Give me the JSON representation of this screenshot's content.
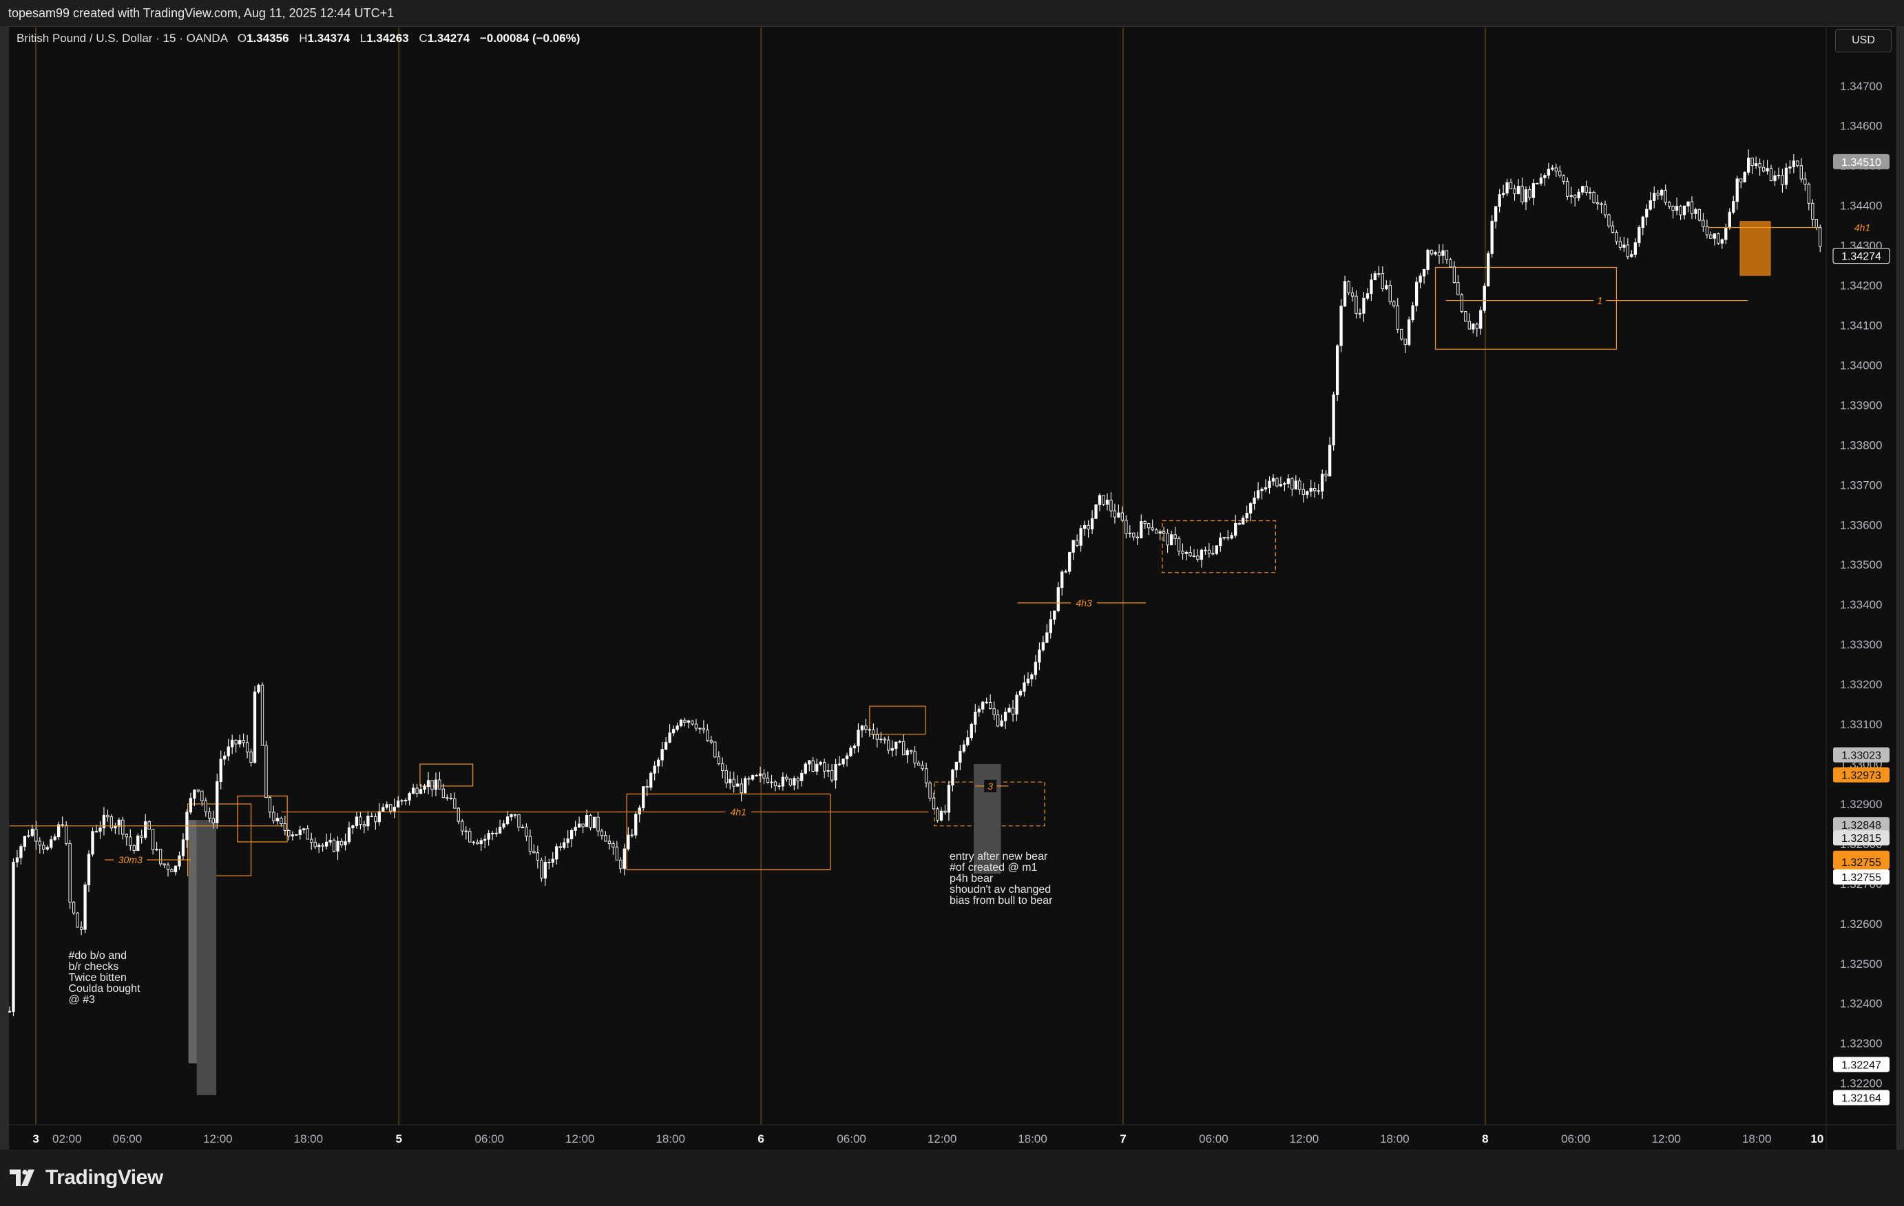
{
  "header": {
    "credit": "topesam99 created with TradingView.com, Aug 11, 2025 12:44 UTC+1"
  },
  "legend": {
    "symbol": "British Pound / U.S. Dollar · 15 · OANDA",
    "o_label": "O",
    "o": "1.34356",
    "h_label": "H",
    "h": "1.34374",
    "l_label": "L",
    "l": "1.34263",
    "c_label": "C",
    "c": "1.34274",
    "change": "−0.00084 (−0.06%)"
  },
  "toolbar": {
    "currency": "USD"
  },
  "footer": {
    "brand": "TradingView"
  },
  "colors": {
    "background": "#0f0f0f",
    "candle": "#ffffff",
    "accent": "#f7931a",
    "session": "#6b4a12",
    "grid_text": "#b2b5be"
  },
  "chart_data": {
    "type": "candlestick",
    "title": "British Pound / U.S. Dollar · 15 · OANDA",
    "ylim": [
      1.3212,
      1.3476
    ],
    "y_ticks": [
      "1.34700",
      "1.34600",
      "1.34500",
      "1.34400",
      "1.34300",
      "1.34200",
      "1.34100",
      "1.34000",
      "1.33900",
      "1.33800",
      "1.33700",
      "1.33600",
      "1.33500",
      "1.33400",
      "1.33300",
      "1.33200",
      "1.33100",
      "1.33000",
      "1.32900",
      "1.32800",
      "1.32700",
      "1.32600",
      "1.32500",
      "1.32400",
      "1.32300",
      "1.32200"
    ],
    "x_ticks": [
      {
        "label": "3",
        "t": 0.34,
        "day": true
      },
      {
        "label": "02:00",
        "t": 2.4
      },
      {
        "label": "06:00",
        "t": 6.4
      },
      {
        "label": "12:00",
        "t": 12.4
      },
      {
        "label": "18:00",
        "t": 18.4
      },
      {
        "label": "5",
        "t": 24.4,
        "day": true
      },
      {
        "label": "06:00",
        "t": 30.4
      },
      {
        "label": "12:00",
        "t": 36.4
      },
      {
        "label": "18:00",
        "t": 42.4
      },
      {
        "label": "6",
        "t": 48.4,
        "day": true
      },
      {
        "label": "06:00",
        "t": 54.4
      },
      {
        "label": "12:00",
        "t": 60.4
      },
      {
        "label": "18:00",
        "t": 66.4
      },
      {
        "label": "7",
        "t": 72.4,
        "day": true
      },
      {
        "label": "06:00",
        "t": 78.4
      },
      {
        "label": "12:00",
        "t": 84.4
      },
      {
        "label": "18:00",
        "t": 90.4
      },
      {
        "label": "8",
        "t": 96.4,
        "day": true
      },
      {
        "label": "06:00",
        "t": 102.4
      },
      {
        "label": "12:00",
        "t": 108.4
      },
      {
        "label": "18:00",
        "t": 114.4
      },
      {
        "label": "10",
        "t": 118.4,
        "day": true
      }
    ],
    "session_lines_t": [
      0.34,
      24.4,
      48.4,
      72.4,
      96.4
    ],
    "t_range": [
      -1.4,
      119.0
    ],
    "price_path": [
      [
        -1.4,
        1.3238
      ],
      [
        -1.2,
        1.3276
      ],
      [
        0,
        1.3284
      ],
      [
        1.2,
        1.3278
      ],
      [
        2.2,
        1.3287
      ],
      [
        2.6,
        1.3265
      ],
      [
        3.3,
        1.3257
      ],
      [
        4,
        1.3283
      ],
      [
        5,
        1.3286
      ],
      [
        6,
        1.3285
      ],
      [
        6.8,
        1.3278
      ],
      [
        7.6,
        1.3285
      ],
      [
        8.6,
        1.3275
      ],
      [
        9.6,
        1.3274
      ],
      [
        10.4,
        1.3288
      ],
      [
        11,
        1.3296
      ],
      [
        12,
        1.3283
      ],
      [
        12.5,
        1.3301
      ],
      [
        13.8,
        1.3306
      ],
      [
        14.6,
        1.3302
      ],
      [
        15.0,
        1.3325
      ],
      [
        15.6,
        1.329
      ],
      [
        16.5,
        1.3284
      ],
      [
        18.5,
        1.3282
      ],
      [
        19.5,
        1.3279
      ],
      [
        20.5,
        1.328
      ],
      [
        21.5,
        1.3285
      ],
      [
        23,
        1.3287
      ],
      [
        25,
        1.3292
      ],
      [
        26,
        1.3296
      ],
      [
        27,
        1.3294
      ],
      [
        28,
        1.3289
      ],
      [
        29,
        1.3282
      ],
      [
        30,
        1.3281
      ],
      [
        31,
        1.3284
      ],
      [
        32,
        1.3287
      ],
      [
        33,
        1.3281
      ],
      [
        33.8,
        1.3272
      ],
      [
        35,
        1.328
      ],
      [
        36,
        1.3285
      ],
      [
        37,
        1.3286
      ],
      [
        38,
        1.3283
      ],
      [
        39,
        1.3274
      ],
      [
        40,
        1.3285
      ],
      [
        40.5,
        1.3292
      ],
      [
        42,
        1.3304
      ],
      [
        43,
        1.3312
      ],
      [
        44,
        1.3311
      ],
      [
        45,
        1.3305
      ],
      [
        46,
        1.3296
      ],
      [
        47,
        1.3294
      ],
      [
        48,
        1.3296
      ],
      [
        49,
        1.3297
      ],
      [
        50,
        1.3295
      ],
      [
        51,
        1.3298
      ],
      [
        52,
        1.33
      ],
      [
        53,
        1.3297
      ],
      [
        54,
        1.3301
      ],
      [
        55,
        1.3309
      ],
      [
        56,
        1.3308
      ],
      [
        57,
        1.3304
      ],
      [
        58,
        1.3304
      ],
      [
        59,
        1.3299
      ],
      [
        60,
        1.3288
      ],
      [
        60.5,
        1.3286
      ],
      [
        61,
        1.3296
      ],
      [
        62,
        1.3307
      ],
      [
        63,
        1.3317
      ],
      [
        64,
        1.3311
      ],
      [
        65,
        1.3313
      ],
      [
        66,
        1.3322
      ],
      [
        67,
        1.3328
      ],
      [
        68,
        1.3342
      ],
      [
        69,
        1.3355
      ],
      [
        70,
        1.3359
      ],
      [
        71,
        1.3367
      ],
      [
        72,
        1.3362
      ],
      [
        73,
        1.3357
      ],
      [
        74,
        1.3361
      ],
      [
        75,
        1.3357
      ],
      [
        76,
        1.3355
      ],
      [
        77,
        1.3351
      ],
      [
        78,
        1.3353
      ],
      [
        79,
        1.3356
      ],
      [
        80,
        1.3361
      ],
      [
        81,
        1.3366
      ],
      [
        82,
        1.337
      ],
      [
        83,
        1.3372
      ],
      [
        84,
        1.3369
      ],
      [
        85,
        1.3368
      ],
      [
        86,
        1.3374
      ],
      [
        87,
        1.3424
      ],
      [
        88,
        1.341
      ],
      [
        89,
        1.3425
      ],
      [
        90,
        1.3418
      ],
      [
        91,
        1.3405
      ],
      [
        92,
        1.3423
      ],
      [
        93,
        1.343
      ],
      [
        94,
        1.3425
      ],
      [
        95,
        1.341
      ],
      [
        96,
        1.341
      ],
      [
        97,
        1.344
      ],
      [
        98,
        1.3446
      ],
      [
        99,
        1.3442
      ],
      [
        100,
        1.3447
      ],
      [
        101,
        1.3451
      ],
      [
        102,
        1.3441
      ],
      [
        103,
        1.3445
      ],
      [
        104,
        1.344
      ],
      [
        105,
        1.3432
      ],
      [
        106,
        1.3426
      ],
      [
        107,
        1.344
      ],
      [
        108,
        1.3444
      ],
      [
        109,
        1.3439
      ],
      [
        110,
        1.344
      ],
      [
        111,
        1.3433
      ],
      [
        112,
        1.343
      ],
      [
        113,
        1.3445
      ],
      [
        114,
        1.3452
      ],
      [
        115,
        1.3448
      ],
      [
        116,
        1.3446
      ],
      [
        117,
        1.3452
      ],
      [
        118,
        1.344
      ],
      [
        118.7,
        1.3427
      ]
    ],
    "zones": [
      {
        "t1": 10.4,
        "t2": 14.6,
        "p1": 1.3272,
        "p2": 1.329,
        "style": "solid"
      },
      {
        "t1": 13.7,
        "t2": 17.0,
        "p1": 1.32805,
        "p2": 1.3292,
        "style": "solid"
      },
      {
        "t1": 25.8,
        "t2": 29.3,
        "p1": 1.32945,
        "p2": 1.33,
        "style": "solid"
      },
      {
        "t1": 39.5,
        "t2": 53.0,
        "p1": 1.32735,
        "p2": 1.32925,
        "style": "solid"
      },
      {
        "t1": 55.6,
        "t2": 59.3,
        "p1": 1.33075,
        "p2": 1.33145,
        "style": "solid"
      },
      {
        "t1": 59.9,
        "t2": 67.2,
        "p1": 1.32845,
        "p2": 1.32955,
        "style": "dashed"
      },
      {
        "t1": 75.0,
        "t2": 82.5,
        "p1": 1.3348,
        "p2": 1.3361,
        "style": "dashed"
      },
      {
        "t1": 93.1,
        "t2": 105.1,
        "p1": 1.3404,
        "p2": 1.34245,
        "style": "solid"
      },
      {
        "t1": 113.3,
        "t2": 115.3,
        "p1": 1.34225,
        "p2": 1.3436,
        "style": "filled"
      }
    ],
    "level_lines": [
      {
        "t1": -1.4,
        "t2": 16.8,
        "p": 1.32845
      },
      {
        "t1": 16.6,
        "t2": 59.5,
        "p": 1.3288
      },
      {
        "t1": 93.8,
        "t2": 113.8,
        "p": 1.34162
      },
      {
        "t1": 111.2,
        "t2": 118.5,
        "p": 1.34345
      }
    ],
    "labels": [
      {
        "text": "30m3",
        "t": 6.6,
        "p": 1.3276,
        "t1": 4.9,
        "t2": 10.6
      },
      {
        "text": "4h1",
        "t": 46.9,
        "p": 1.3288
      },
      {
        "text": "3",
        "t": 63.6,
        "p": 1.32945,
        "t1": 62.6,
        "t2": 64.8
      },
      {
        "text": "4h3",
        "t": 69.8,
        "p": 1.33404,
        "t1": 65.4,
        "t2": 73.9
      },
      {
        "text": "1",
        "t": 104.0,
        "p": 1.34162
      },
      {
        "text": "4h1",
        "t": 121.4,
        "p": 1.34345
      }
    ],
    "annotations": [
      {
        "lines": [
          "#do b/o and",
          "b/r checks",
          "Twice bitten",
          "",
          "Coulda bought",
          "@ #3"
        ],
        "t": 2.5,
        "p": 1.32512
      },
      {
        "lines": [
          "entry after new bear",
          "#of created @ m1",
          "",
          "p4h bear",
          "shoudn't av changed",
          "bias from bull to bear"
        ],
        "t": 60.9,
        "p": 1.3276
      }
    ],
    "volume_bars": [
      {
        "t1": 10.45,
        "t2": 11.0,
        "p1": 1.3225,
        "p2": 1.3286,
        "color": "#646464"
      },
      {
        "t1": 11.0,
        "t2": 12.3,
        "p1": 1.3217,
        "p2": 1.3286,
        "color": "#4a4a4a"
      },
      {
        "t1": 62.5,
        "t2": 64.3,
        "p1": 1.32725,
        "p2": 1.33,
        "color": "#4a4a4a"
      }
    ],
    "price_tags": [
      {
        "value": "1.34510",
        "bg": "#9b9b9b",
        "fg": "#ffffff"
      },
      {
        "value": "1.34274",
        "bg": "#0f0f0f",
        "fg": "#ffffff",
        "border": "#ffffff"
      },
      {
        "value": "1.33023",
        "bg": "#bdbdbd",
        "fg": "#111111"
      },
      {
        "value": "1.32973",
        "bg": "#f7931a",
        "fg": "#111111"
      },
      {
        "value": "1.32848",
        "bg": "#bdbdbd",
        "fg": "#111111"
      },
      {
        "value": "1.32815",
        "bg": "#e0e0e0",
        "fg": "#111111"
      },
      {
        "value": "1.32764",
        "bg": "#f7931a",
        "fg": "#111111"
      },
      {
        "value": "1.32755",
        "bg": "#f7931a",
        "fg": "#111111"
      },
      {
        "value": "1.32755",
        "bg": "#ffffff",
        "fg": "#111111",
        "offset": 1
      },
      {
        "value": "1.32247",
        "bg": "#ffffff",
        "fg": "#111111"
      },
      {
        "value": "1.32164",
        "bg": "#ffffff",
        "fg": "#111111"
      }
    ]
  }
}
